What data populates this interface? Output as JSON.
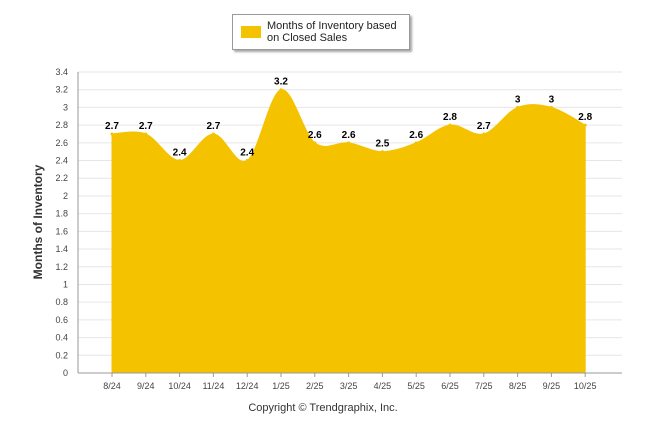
{
  "colors": {
    "fill": "#f5c200",
    "grid": "#e6e6e6",
    "axis": "#999999"
  },
  "copyright": "Copyright © Trendgraphix, Inc.",
  "chart_data": {
    "type": "area",
    "title": "",
    "legend": {
      "label": "Months of Inventory based on Closed Sales",
      "position": "top-center"
    },
    "xlabel": "",
    "ylabel": "Months of Inventory",
    "categories": [
      "8/24",
      "9/24",
      "10/24",
      "11/24",
      "12/24",
      "1/25",
      "2/25",
      "3/25",
      "4/25",
      "5/25",
      "6/25",
      "7/25",
      "8/25",
      "9/25",
      "10/25"
    ],
    "series": [
      {
        "name": "Months of Inventory based on Closed Sales",
        "values": [
          2.7,
          2.7,
          2.4,
          2.7,
          2.4,
          3.2,
          2.6,
          2.6,
          2.5,
          2.6,
          2.8,
          2.7,
          3.0,
          3.0,
          2.8
        ],
        "labels": [
          "2.7",
          "2.7",
          "2.4",
          "2.7",
          "2.4",
          "3.2",
          "2.6",
          "2.6",
          "2.5",
          "2.6",
          "2.8",
          "2.7",
          "3",
          "3",
          "2.8"
        ]
      }
    ],
    "ylim": [
      0,
      3.4
    ],
    "yticks": [
      "0",
      "0.2",
      "0.4",
      "0.6",
      "0.8",
      "1",
      "1.2",
      "1.4",
      "1.6",
      "1.8",
      "2",
      "2.2",
      "2.4",
      "2.6",
      "2.8",
      "3",
      "3.2",
      "3.4"
    ],
    "grid": true
  }
}
